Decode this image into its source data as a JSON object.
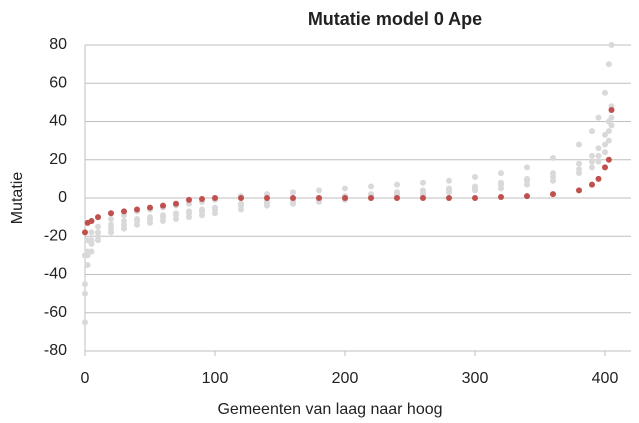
{
  "chart_data": {
    "type": "scatter",
    "title": "Mutatie model 0 Ape",
    "xlabel": "Gemeenten van laag naar hoog",
    "ylabel": "Mutatie",
    "x": [
      0,
      2,
      5,
      10,
      20,
      30,
      40,
      50,
      60,
      70,
      80,
      90,
      100,
      120,
      140,
      160,
      180,
      200,
      220,
      240,
      260,
      280,
      300,
      320,
      340,
      360,
      380,
      390,
      395,
      400,
      403,
      405
    ],
    "series": [
      {
        "color": "#d9d9d9",
        "values": [
          -30,
          -22,
          -18,
          -15,
          -11,
          -9,
          -7,
          -6,
          -5,
          -4,
          -3,
          -2,
          -1,
          1,
          2,
          3,
          4,
          5,
          6,
          7,
          8,
          9,
          11,
          13,
          16,
          21,
          28,
          35,
          42,
          55,
          70,
          80
        ]
      },
      {
        "color": "#d9d9d9",
        "values": [
          -45,
          -28,
          -22,
          -18,
          -14,
          -12,
          -11,
          -10,
          -9,
          -8,
          -7,
          -6,
          -5,
          -3,
          -2,
          -1,
          0,
          1,
          2,
          3,
          4,
          5,
          6,
          8,
          10,
          13,
          18,
          22,
          26,
          33,
          40,
          48
        ]
      },
      {
        "color": "#d9d9d9",
        "values": [
          -65,
          -35,
          -28,
          -22,
          -18,
          -16,
          -14,
          -13,
          -12,
          -11,
          -10,
          -9,
          -8,
          -6,
          -4,
          -3,
          -2,
          -1,
          0,
          1,
          2,
          3,
          4,
          5,
          7,
          9,
          13,
          16,
          19,
          24,
          30,
          38
        ]
      },
      {
        "color": "#d9d9d9",
        "values": [
          -50,
          -30,
          -24,
          -20,
          -16,
          -14,
          -12,
          -11,
          -10,
          -9,
          -8,
          -7,
          -6,
          -4,
          -3,
          -2,
          -1,
          0,
          1,
          2,
          3,
          4,
          5,
          7,
          9,
          11,
          15,
          19,
          22,
          28,
          35,
          42
        ]
      },
      {
        "color": "#c0504d",
        "values": [
          -18,
          -13,
          -12,
          -10,
          -8,
          -7,
          -6,
          -5,
          -4,
          -3,
          -1,
          -0.5,
          0,
          0,
          0,
          0,
          0,
          0,
          0,
          0,
          0,
          0,
          0,
          0.5,
          1,
          2,
          4,
          7,
          10,
          16,
          20,
          46
        ]
      }
    ],
    "xlim": [
      0,
      420
    ],
    "xticks": [
      0,
      100,
      200,
      300,
      400
    ],
    "ylim": [
      -80,
      80
    ],
    "yticks": [
      -80,
      -60,
      -40,
      -20,
      0,
      20,
      40,
      60,
      80
    ],
    "grid": true
  }
}
